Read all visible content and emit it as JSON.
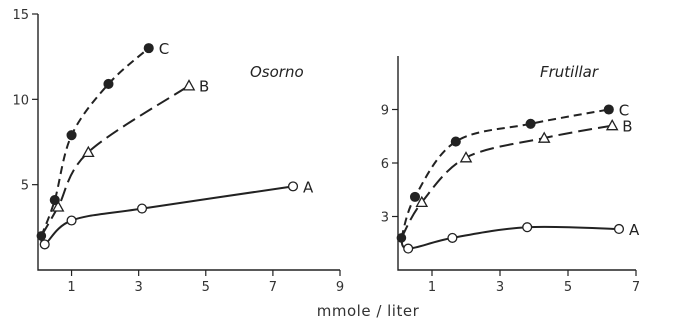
{
  "chart_data": [
    {
      "type": "line",
      "title": "Osorno",
      "xlim": [
        0,
        9
      ],
      "ylim": [
        0,
        15
      ],
      "x_ticks": [
        1,
        3,
        5,
        7,
        9
      ],
      "y_ticks": [
        5,
        10,
        15
      ],
      "grid": false,
      "series": [
        {
          "name": "A",
          "marker": "open-circle",
          "line": "solid",
          "x": [
            0.1,
            0.2,
            1.0,
            3.1,
            7.6
          ],
          "y": [
            2.0,
            1.5,
            2.9,
            3.6,
            4.9
          ]
        },
        {
          "name": "B",
          "marker": "open-triangle",
          "line": "long-dash",
          "x": [
            0.1,
            0.6,
            1.5,
            4.5
          ],
          "y": [
            2.0,
            3.7,
            6.9,
            10.8
          ]
        },
        {
          "name": "C",
          "marker": "filled-circle",
          "line": "dash",
          "x": [
            0.1,
            0.5,
            1.0,
            2.1,
            3.3
          ],
          "y": [
            2.0,
            4.1,
            7.9,
            10.9,
            13.0
          ]
        }
      ]
    },
    {
      "type": "line",
      "title": "Frutillar",
      "xlim": [
        0,
        7
      ],
      "ylim": [
        0,
        12
      ],
      "x_ticks": [
        1,
        3,
        5,
        7
      ],
      "y_ticks": [
        3,
        6,
        9
      ],
      "grid": false,
      "series": [
        {
          "name": "A",
          "marker": "open-circle",
          "line": "solid",
          "x": [
            0.1,
            0.3,
            1.6,
            3.8,
            6.5
          ],
          "y": [
            1.8,
            1.2,
            1.8,
            2.4,
            2.3
          ]
        },
        {
          "name": "B",
          "marker": "open-triangle",
          "line": "long-dash",
          "x": [
            0.1,
            0.7,
            2.0,
            4.3,
            6.3
          ],
          "y": [
            1.8,
            3.8,
            6.3,
            7.4,
            8.1
          ]
        },
        {
          "name": "C",
          "marker": "filled-circle",
          "line": "dash",
          "x": [
            0.1,
            0.5,
            1.7,
            3.9,
            6.2
          ],
          "y": [
            1.8,
            4.1,
            7.2,
            8.2,
            9.0
          ]
        }
      ]
    }
  ],
  "xlabel": "mmole / liter"
}
